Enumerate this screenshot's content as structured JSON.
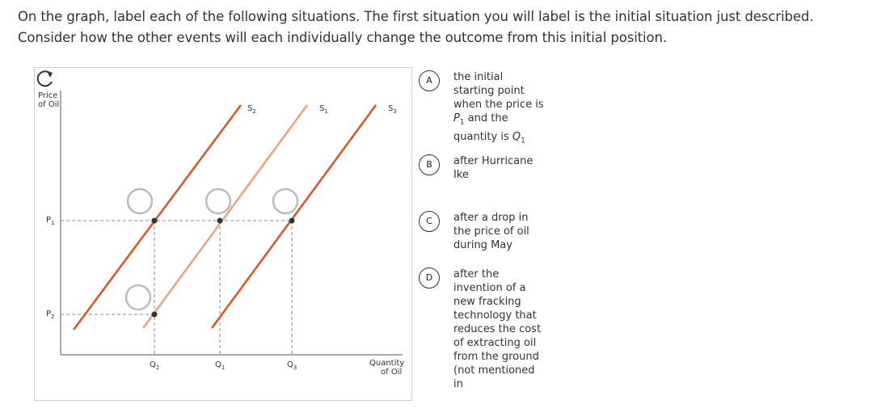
{
  "instructions": "On the graph, label each of the following situations. The first situation you will label is the initial situation just described. Consider how the other events will each individually change the outcome from this initial position.",
  "graph": {
    "y_axis_label_line1": "Price",
    "y_axis_label_line2": "of Oil",
    "x_axis_label_line1": "Quantity",
    "x_axis_label_line2": "of Oil",
    "price_levels": [
      "P1",
      "P2"
    ],
    "quantity_levels": [
      "Q2",
      "Q1",
      "Q3"
    ],
    "supply_curves": [
      {
        "name": "S2",
        "color": "#e0531f"
      },
      {
        "name": "S1",
        "color": "#f3a07a"
      },
      {
        "name": "S3",
        "color": "#e0531f"
      }
    ],
    "reset_icon": "reset-icon"
  },
  "choices": [
    {
      "letter": "A",
      "html": "the initial starting point when the price is <i>P</i><sub>1</sub> and the quantity is <i>Q</i><sub>1</sub>"
    },
    {
      "letter": "B",
      "text": "after Hurricane Ike"
    },
    {
      "letter": "C",
      "text": "after a drop in the price of oil during May"
    },
    {
      "letter": "D",
      "text": "after the invention of a new fracking technology that reduces the cost of extracting oil from the ground (not mentioned in"
    }
  ]
}
